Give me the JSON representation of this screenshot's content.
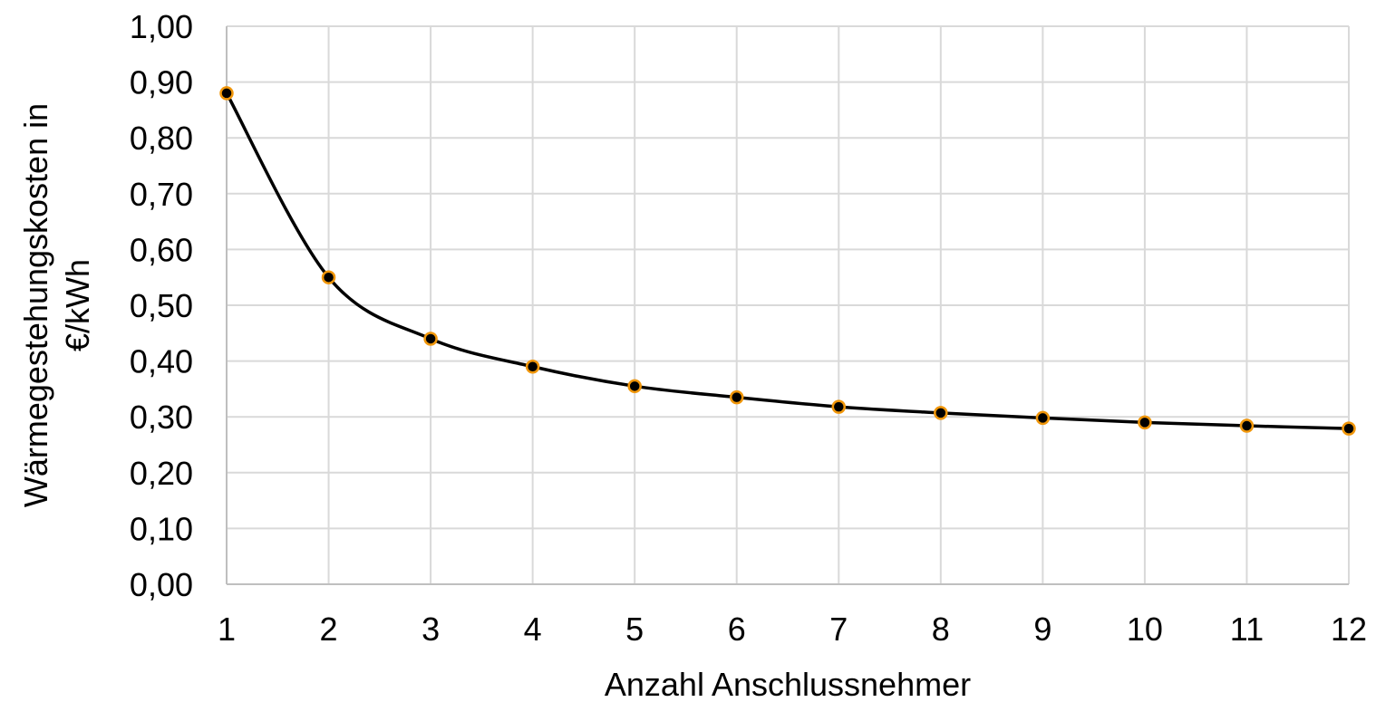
{
  "chart_data": {
    "type": "line",
    "title": "",
    "xlabel": "Anzahl Anschlussnehmer",
    "ylabel_lines": [
      "Wärmegestehungskosten in",
      "€/kWh"
    ],
    "x": [
      1,
      2,
      3,
      4,
      5,
      6,
      7,
      8,
      9,
      10,
      11,
      12
    ],
    "x_tick_labels": [
      "1",
      "2",
      "3",
      "4",
      "5",
      "6",
      "7",
      "8",
      "9",
      "10",
      "11",
      "12"
    ],
    "series": [
      {
        "values": [
          0.88,
          0.55,
          0.44,
          0.39,
          0.355,
          0.335,
          0.318,
          0.307,
          0.298,
          0.29,
          0.284,
          0.279
        ],
        "line_color": "#000000",
        "marker_fill": "#000000",
        "marker_edge": "#f0960a"
      }
    ],
    "ylim": [
      0,
      1.0
    ],
    "y_ticks": [
      0,
      0.1,
      0.2,
      0.3,
      0.4,
      0.5,
      0.6,
      0.7,
      0.8,
      0.9,
      1.0
    ],
    "y_tick_labels": [
      "0,00",
      "0,10",
      "0,20",
      "0,30",
      "0,40",
      "0,50",
      "0,60",
      "0,70",
      "0,80",
      "0,90",
      "1,00"
    ],
    "grid": true,
    "grid_color": "#d9d9d9",
    "smooth_line": true
  }
}
